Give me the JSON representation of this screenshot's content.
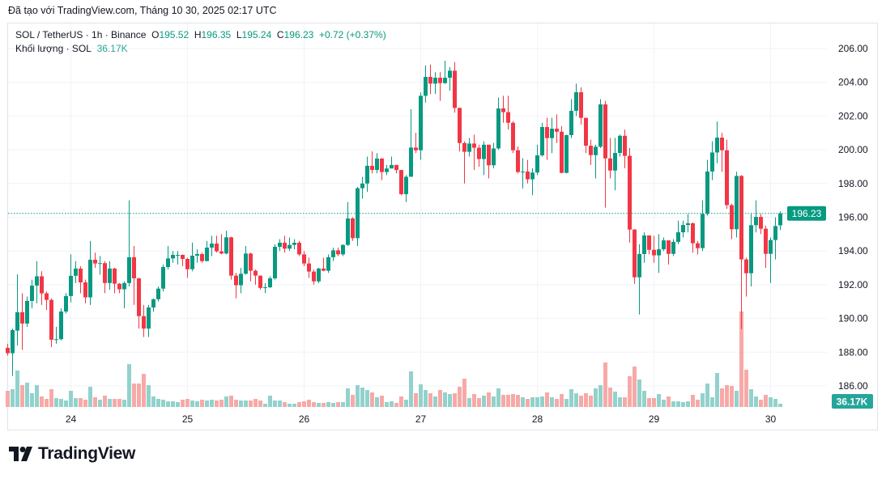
{
  "caption": "Đã tạo với TradingView.com, Tháng 10 30, 2025 02:17 UTC",
  "legend": {
    "symbol": "SOL / TetherUS · 1h · Binance",
    "o_label": "O",
    "o": "195.52",
    "h_label": "H",
    "h": "196.35",
    "l_label": "L",
    "l": "195.24",
    "c_label": "C",
    "c": "196.23",
    "change": "+0.72 (+0.37%)",
    "volume_label": "Khối lượng · SOL",
    "volume_value": "36.17K"
  },
  "logo": "TradingView",
  "colors": {
    "up": "#089981",
    "down": "#F23645",
    "up_volume": "#92D2CC",
    "down_volume": "#F7A9A7",
    "last_price": "#089981"
  },
  "chart_data": {
    "type": "candlestick",
    "interval": "1h",
    "x_tick_labels": [
      "24",
      "25",
      "26",
      "27",
      "28",
      "29",
      "30"
    ],
    "x_tick_index": [
      13,
      37,
      61,
      85,
      109,
      133,
      157
    ],
    "y_ticks": [
      "186.00",
      "188.00",
      "190.00",
      "192.00",
      "194.00",
      "196.00",
      "198.00",
      "200.00",
      "202.00",
      "204.00",
      "206.00"
    ],
    "ylim": [
      185.0,
      207.5
    ],
    "grid": true,
    "last_price_label": "196.23",
    "last_volume_label": "36.17K",
    "ohlc": [
      [
        188.26,
        188.5,
        187.8,
        187.94
      ],
      [
        187.94,
        189.4,
        186.59,
        189.31
      ],
      [
        189.28,
        192.62,
        188.4,
        190.37
      ],
      [
        190.37,
        191.5,
        188.14,
        189.7
      ],
      [
        189.7,
        191.3,
        189.5,
        191.04
      ],
      [
        191.04,
        192.3,
        190.6,
        191.95
      ],
      [
        191.95,
        193.4,
        190.9,
        192.5
      ],
      [
        192.5,
        192.8,
        190.8,
        191.49
      ],
      [
        191.49,
        191.6,
        190.5,
        191.1
      ],
      [
        191.1,
        191.2,
        188.3,
        188.74
      ],
      [
        188.74,
        189.5,
        188.5,
        188.77
      ],
      [
        188.77,
        190.6,
        188.7,
        190.41
      ],
      [
        190.41,
        191.5,
        190.3,
        191.33
      ],
      [
        191.33,
        193.8,
        190.95,
        192.53
      ],
      [
        192.53,
        193.4,
        192.1,
        192.96
      ],
      [
        192.96,
        193.1,
        191.5,
        192.14
      ],
      [
        192.14,
        192.3,
        190.9,
        191.25
      ],
      [
        191.25,
        194.6,
        190.8,
        193.48
      ],
      [
        193.48,
        193.9,
        193.0,
        193.26
      ],
      [
        193.26,
        193.7,
        192.6,
        193.28
      ],
      [
        193.28,
        193.4,
        191.5,
        192.1
      ],
      [
        192.1,
        193.4,
        191.7,
        192.96
      ],
      [
        192.96,
        193.0,
        191.5,
        192.06
      ],
      [
        192.06,
        192.1,
        191.5,
        191.73
      ],
      [
        191.73,
        192.2,
        190.6,
        192.1
      ],
      [
        192.1,
        197.0,
        191.9,
        193.63
      ],
      [
        193.63,
        194.3,
        190.8,
        192.38
      ],
      [
        192.38,
        192.4,
        189.4,
        190.14
      ],
      [
        190.14,
        190.8,
        188.9,
        189.4
      ],
      [
        189.4,
        190.8,
        188.9,
        190.65
      ],
      [
        190.65,
        191.2,
        190.4,
        191.14
      ],
      [
        191.14,
        191.9,
        191.0,
        191.77
      ],
      [
        191.77,
        193.2,
        191.6,
        193.05
      ],
      [
        193.05,
        194.3,
        192.9,
        193.56
      ],
      [
        193.56,
        194.0,
        193.3,
        193.77
      ],
      [
        193.77,
        194.0,
        193.2,
        193.77
      ],
      [
        193.77,
        193.8,
        193.1,
        193.53
      ],
      [
        193.53,
        193.6,
        192.4,
        192.92
      ],
      [
        192.92,
        194.5,
        192.8,
        193.72
      ],
      [
        193.72,
        194.1,
        193.3,
        193.82
      ],
      [
        193.82,
        193.9,
        193.3,
        193.4
      ],
      [
        193.4,
        194.6,
        193.4,
        194.2
      ],
      [
        194.2,
        194.9,
        193.7,
        194.44
      ],
      [
        194.44,
        194.9,
        193.9,
        193.98
      ],
      [
        193.98,
        195.0,
        193.8,
        193.85
      ],
      [
        193.85,
        195.2,
        193.8,
        194.81
      ],
      [
        194.81,
        194.85,
        192.3,
        192.54
      ],
      [
        192.54,
        192.7,
        191.2,
        191.97
      ],
      [
        191.97,
        193.0,
        191.5,
        192.65
      ],
      [
        192.65,
        194.3,
        192.6,
        193.85
      ],
      [
        193.85,
        193.9,
        192.2,
        192.83
      ],
      [
        192.83,
        192.9,
        192.0,
        192.54
      ],
      [
        192.54,
        192.5,
        191.7,
        191.81
      ],
      [
        191.81,
        192.1,
        191.5,
        191.85
      ],
      [
        191.85,
        192.5,
        191.8,
        192.38
      ],
      [
        192.38,
        194.4,
        192.3,
        194.25
      ],
      [
        194.25,
        194.7,
        194.0,
        194.49
      ],
      [
        194.49,
        194.9,
        193.9,
        194.14
      ],
      [
        194.14,
        194.8,
        194.0,
        194.36
      ],
      [
        194.36,
        194.7,
        194.1,
        194.49
      ],
      [
        194.49,
        194.6,
        193.7,
        193.8
      ],
      [
        193.8,
        194.0,
        193.1,
        193.26
      ],
      [
        193.26,
        193.6,
        192.4,
        192.78
      ],
      [
        192.78,
        192.9,
        192.0,
        192.2
      ],
      [
        192.2,
        193.0,
        192.1,
        192.96
      ],
      [
        192.96,
        193.6,
        192.8,
        192.83
      ],
      [
        192.83,
        193.8,
        192.7,
        193.63
      ],
      [
        193.63,
        194.2,
        193.4,
        194.04
      ],
      [
        194.04,
        194.2,
        193.7,
        193.8
      ],
      [
        193.8,
        194.4,
        193.7,
        194.36
      ],
      [
        194.36,
        196.9,
        194.3,
        195.93
      ],
      [
        195.93,
        196.0,
        194.6,
        194.76
      ],
      [
        194.76,
        197.8,
        194.3,
        197.72
      ],
      [
        197.72,
        198.4,
        197.1,
        198.0
      ],
      [
        198.0,
        199.6,
        197.5,
        199.05
      ],
      [
        199.05,
        199.9,
        198.6,
        198.8
      ],
      [
        198.8,
        199.8,
        198.6,
        199.48
      ],
      [
        199.48,
        199.5,
        198.2,
        198.68
      ],
      [
        198.68,
        199.1,
        198.5,
        198.89
      ],
      [
        198.89,
        199.6,
        198.9,
        199.1
      ],
      [
        199.1,
        199.1,
        198.6,
        198.8
      ],
      [
        198.8,
        198.8,
        197.3,
        197.37
      ],
      [
        197.37,
        198.5,
        196.9,
        198.4
      ],
      [
        198.4,
        202.4,
        198.4,
        200.13
      ],
      [
        200.13,
        201.0,
        199.8,
        199.97
      ],
      [
        199.97,
        203.4,
        199.4,
        203.2
      ],
      [
        203.2,
        205.0,
        202.8,
        204.32
      ],
      [
        204.32,
        205.05,
        203.3,
        203.92
      ],
      [
        203.92,
        204.6,
        203.3,
        204.27
      ],
      [
        204.27,
        204.6,
        202.9,
        203.95
      ],
      [
        203.95,
        205.28,
        203.9,
        204.27
      ],
      [
        204.27,
        204.9,
        203.5,
        204.69
      ],
      [
        204.69,
        205.2,
        202.2,
        202.48
      ],
      [
        202.48,
        202.5,
        199.9,
        200.4
      ],
      [
        200.4,
        200.5,
        198.0,
        199.88
      ],
      [
        199.88,
        200.7,
        199.6,
        200.37
      ],
      [
        200.37,
        200.9,
        198.8,
        200.12
      ],
      [
        200.12,
        200.3,
        199.0,
        199.45
      ],
      [
        199.45,
        200.5,
        198.5,
        200.3
      ],
      [
        200.3,
        200.3,
        198.3,
        199.08
      ],
      [
        199.08,
        200.4,
        198.9,
        200.08
      ],
      [
        200.08,
        203.1,
        200.0,
        202.45
      ],
      [
        202.45,
        203.2,
        201.6,
        202.23
      ],
      [
        202.23,
        203.2,
        201.2,
        201.6
      ],
      [
        201.6,
        201.7,
        199.8,
        199.97
      ],
      [
        199.97,
        200.2,
        198.6,
        198.68
      ],
      [
        198.71,
        199.5,
        197.7,
        198.71
      ],
      [
        198.71,
        199.4,
        198.0,
        198.25
      ],
      [
        198.25,
        198.9,
        197.3,
        198.65
      ],
      [
        198.65,
        200.3,
        198.5,
        199.67
      ],
      [
        199.67,
        201.6,
        199.6,
        201.35
      ],
      [
        201.35,
        201.9,
        199.4,
        200.69
      ],
      [
        200.69,
        201.9,
        199.8,
        201.25
      ],
      [
        201.25,
        202.1,
        200.4,
        201.07
      ],
      [
        201.07,
        201.4,
        198.6,
        198.63
      ],
      [
        198.63,
        200.9,
        198.6,
        200.87
      ],
      [
        200.87,
        203.0,
        200.7,
        202.31
      ],
      [
        202.31,
        203.92,
        202.0,
        203.41
      ],
      [
        203.41,
        203.7,
        201.5,
        201.89
      ],
      [
        201.89,
        201.9,
        199.8,
        200.24
      ],
      [
        200.24,
        200.6,
        199.1,
        199.68
      ],
      [
        199.68,
        200.3,
        198.3,
        200.18
      ],
      [
        200.18,
        203.0,
        200.1,
        202.69
      ],
      [
        202.69,
        202.9,
        196.57,
        199.49
      ],
      [
        199.49,
        200.7,
        198.3,
        198.77
      ],
      [
        198.77,
        200.7,
        197.6,
        199.81
      ],
      [
        199.81,
        200.9,
        199.6,
        200.83
      ],
      [
        200.83,
        201.2,
        198.9,
        199.64
      ],
      [
        199.64,
        200.1,
        194.5,
        195.27
      ],
      [
        195.27,
        195.3,
        192.05,
        192.44
      ],
      [
        192.44,
        194.4,
        190.24,
        193.82
      ],
      [
        193.82,
        195.1,
        193.3,
        194.92
      ],
      [
        194.92,
        194.9,
        193.8,
        194.07
      ],
      [
        194.07,
        194.9,
        193.3,
        193.74
      ],
      [
        193.74,
        195.0,
        192.7,
        194.1
      ],
      [
        194.1,
        194.8,
        194.0,
        194.63
      ],
      [
        194.63,
        194.6,
        193.2,
        193.83
      ],
      [
        193.83,
        194.7,
        193.7,
        194.54
      ],
      [
        194.54,
        195.8,
        194.4,
        195.11
      ],
      [
        195.11,
        195.8,
        194.8,
        195.54
      ],
      [
        195.54,
        196.2,
        195.1,
        195.64
      ],
      [
        195.64,
        195.7,
        193.9,
        194.46
      ],
      [
        194.46,
        194.6,
        193.8,
        194.17
      ],
      [
        194.17,
        197.0,
        194.0,
        196.2
      ],
      [
        196.2,
        199.4,
        196.1,
        198.71
      ],
      [
        198.71,
        200.5,
        198.2,
        199.84
      ],
      [
        199.84,
        201.68,
        199.2,
        200.72
      ],
      [
        200.72,
        201.0,
        198.7,
        199.97
      ],
      [
        199.97,
        200.6,
        196.5,
        196.72
      ],
      [
        196.72,
        196.8,
        194.7,
        195.29
      ],
      [
        195.29,
        198.7,
        194.8,
        198.45
      ],
      [
        198.45,
        198.5,
        189.37,
        193.5
      ],
      [
        193.5,
        193.6,
        191.3,
        192.68
      ],
      [
        192.68,
        196.2,
        191.9,
        195.53
      ],
      [
        195.53,
        197.0,
        195.1,
        196.02
      ],
      [
        196.02,
        196.2,
        195.0,
        195.32
      ],
      [
        195.32,
        195.5,
        193.0,
        193.83
      ],
      [
        193.83,
        194.8,
        192.1,
        194.65
      ],
      [
        194.65,
        196.0,
        193.5,
        195.48
      ],
      [
        195.52,
        196.35,
        195.24,
        196.23
      ]
    ],
    "volume_k": [
      180,
      198,
      405,
      243,
      270,
      153,
      243,
      117,
      90,
      198,
      99,
      90,
      72,
      180,
      99,
      99,
      81,
      225,
      108,
      81,
      126,
      90,
      90,
      90,
      81,
      477,
      261,
      261,
      369,
      243,
      117,
      90,
      81,
      63,
      63,
      54,
      81,
      90,
      72,
      63,
      81,
      72,
      81,
      72,
      81,
      117,
      126,
      81,
      72,
      72,
      72,
      90,
      72,
      36,
      126,
      72,
      72,
      54,
      36,
      36,
      54,
      63,
      81,
      54,
      45,
      45,
      54,
      45,
      54,
      54,
      207,
      135,
      243,
      216,
      189,
      162,
      108,
      126,
      54,
      63,
      45,
      117,
      81,
      396,
      153,
      252,
      189,
      153,
      117,
      189,
      162,
      144,
      153,
      225,
      315,
      99,
      144,
      99,
      126,
      162,
      117,
      207,
      135,
      135,
      144,
      135,
      108,
      90,
      108,
      108,
      117,
      162,
      108,
      90,
      144,
      90,
      198,
      153,
      126,
      153,
      126,
      207,
      243,
      495,
      216,
      171,
      108,
      108,
      342,
      450,
      306,
      180,
      99,
      99,
      144,
      81,
      117,
      63,
      63,
      54,
      63,
      135,
      81,
      153,
      261,
      108,
      378,
      207,
      243,
      234,
      180,
      1062,
      414,
      198,
      117,
      81,
      135,
      108,
      90,
      36.17
    ]
  }
}
